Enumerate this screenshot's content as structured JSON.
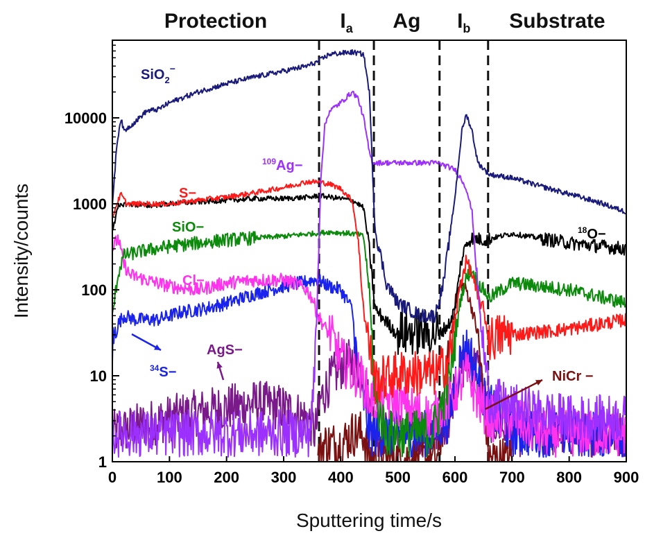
{
  "chart_data": {
    "type": "line",
    "xlabel": "Sputtering time/s",
    "ylabel": "Intensity/counts",
    "y_scale": "log",
    "xlim": [
      0,
      900
    ],
    "ylim": [
      1,
      80000
    ],
    "x_ticks": [
      0,
      100,
      200,
      300,
      400,
      500,
      600,
      700,
      800,
      900
    ],
    "y_ticks": [
      {
        "value": 1,
        "label": "1"
      },
      {
        "value": 10,
        "label": "10"
      },
      {
        "value": 100,
        "label": "100"
      },
      {
        "value": 1000,
        "label": "1000"
      },
      {
        "value": 10000,
        "label": "10000"
      }
    ],
    "boundaries": [
      362,
      458,
      573,
      658
    ],
    "regions": [
      {
        "name": "Protection",
        "x_from": 0,
        "x_to": 362
      },
      {
        "name": "I",
        "sub": "a",
        "x_from": 362,
        "x_to": 458
      },
      {
        "name": "Ag",
        "x_from": 458,
        "x_to": 573
      },
      {
        "name": "I",
        "sub": "b",
        "x_from": 573,
        "x_to": 658
      },
      {
        "name": "Substrate",
        "x_from": 658,
        "x_to": 900
      }
    ],
    "series": [
      {
        "key": "sio2",
        "name": "SiO₂⁻",
        "color": "#1a1a7a",
        "x": [
          0,
          8,
          15,
          20,
          40,
          60,
          80,
          100,
          150,
          200,
          250,
          300,
          340,
          360,
          380,
          420,
          440,
          450,
          460,
          480,
          500,
          540,
          565,
          580,
          600,
          612,
          620,
          630,
          640,
          660,
          700,
          750,
          800,
          850,
          900
        ],
        "y": [
          1000,
          5000,
          10000,
          7000,
          9000,
          12000,
          12500,
          15000,
          20000,
          25000,
          30000,
          35000,
          40000,
          45000,
          55000,
          58000,
          55000,
          20000,
          500,
          120,
          70,
          50,
          50,
          120,
          1200,
          7000,
          11000,
          7000,
          3000,
          2200,
          2000,
          1600,
          1300,
          1050,
          800
        ]
      },
      {
        "key": "ag109",
        "name": "Ag⁻",
        "sup": "109",
        "color": "#9b30ff",
        "x": [
          0,
          100,
          200,
          300,
          345,
          352,
          358,
          365,
          372,
          380,
          400,
          420,
          430,
          440,
          450,
          455,
          460,
          500,
          540,
          570,
          600,
          610,
          620,
          630,
          645,
          660,
          700,
          800,
          900
        ],
        "y": [
          2,
          2,
          2,
          2,
          2,
          5,
          50,
          2000,
          8000,
          12000,
          15000,
          20000,
          17000,
          10000,
          4000,
          3100,
          3000,
          3000,
          3000,
          3000,
          2500,
          2000,
          1500,
          800,
          40,
          5,
          4,
          3,
          3
        ]
      },
      {
        "key": "s",
        "name": "S⁻",
        "color": "#ff1a1a",
        "x": [
          0,
          8,
          15,
          25,
          60,
          100,
          150,
          200,
          250,
          300,
          340,
          360,
          380,
          400,
          420,
          430,
          440,
          450,
          460,
          500,
          540,
          570,
          590,
          610,
          620,
          630,
          640,
          650,
          660,
          700,
          800,
          900
        ],
        "y": [
          700,
          1000,
          1300,
          1000,
          1000,
          1000,
          1100,
          1200,
          1350,
          1550,
          1800,
          1800,
          1700,
          1500,
          1100,
          400,
          60,
          20,
          8,
          10,
          10,
          10,
          15,
          120,
          220,
          150,
          80,
          60,
          25,
          30,
          35,
          45
        ]
      },
      {
        "key": "o18",
        "name": "O⁻",
        "sup": "18",
        "color": "#000000",
        "x": [
          0,
          10,
          20,
          60,
          100,
          150,
          200,
          250,
          300,
          350,
          360,
          380,
          400,
          420,
          430,
          440,
          450,
          460,
          500,
          540,
          570,
          590,
          600,
          610,
          620,
          630,
          650,
          700,
          800,
          900
        ],
        "y": [
          500,
          900,
          1000,
          950,
          1000,
          1050,
          1100,
          1150,
          1150,
          1200,
          1250,
          1200,
          1150,
          1100,
          1000,
          900,
          300,
          60,
          30,
          30,
          30,
          40,
          60,
          200,
          350,
          400,
          380,
          450,
          350,
          300
        ]
      },
      {
        "key": "sio",
        "name": "SiO⁻",
        "color": "#0b8a0b",
        "x": [
          0,
          10,
          20,
          50,
          100,
          150,
          200,
          250,
          300,
          350,
          380,
          400,
          420,
          430,
          440,
          450,
          460,
          480,
          520,
          560,
          590,
          610,
          620,
          630,
          640,
          650,
          660,
          700,
          800,
          900
        ],
        "y": [
          50,
          150,
          250,
          280,
          320,
          350,
          380,
          400,
          420,
          450,
          470,
          460,
          450,
          440,
          420,
          100,
          5,
          2,
          2,
          2,
          8,
          80,
          140,
          170,
          120,
          100,
          80,
          120,
          100,
          70
        ]
      },
      {
        "key": "cl",
        "name": "Cl⁻",
        "color": "#ff33ee",
        "x": [
          0,
          10,
          20,
          30,
          60,
          100,
          150,
          200,
          250,
          300,
          320,
          340,
          350,
          360,
          380,
          400,
          420,
          430,
          440,
          450,
          480,
          520,
          560,
          600,
          620,
          640,
          660,
          700,
          750,
          800,
          850,
          900
        ],
        "y": [
          300,
          400,
          200,
          150,
          130,
          110,
          100,
          120,
          130,
          130,
          120,
          100,
          80,
          50,
          30,
          15,
          10,
          10,
          8,
          5,
          5,
          4,
          3,
          6,
          10,
          5,
          3,
          3,
          2,
          2,
          2,
          2
        ]
      },
      {
        "key": "s34",
        "name": "S⁻",
        "sup": "34",
        "color": "#1a22ee",
        "x": [
          0,
          10,
          20,
          40,
          80,
          120,
          160,
          200,
          250,
          300,
          330,
          350,
          360,
          380,
          400,
          420,
          430,
          440,
          450,
          480,
          520,
          560,
          590,
          600,
          610,
          620,
          630,
          640,
          650,
          700,
          800,
          900
        ],
        "y": [
          20,
          40,
          50,
          45,
          45,
          55,
          60,
          70,
          90,
          110,
          120,
          130,
          130,
          110,
          100,
          60,
          10,
          5,
          2,
          2,
          2,
          2,
          3,
          8,
          15,
          20,
          15,
          8,
          5,
          2,
          2,
          2
        ]
      },
      {
        "key": "ags",
        "name": "AgS⁻",
        "color": "#7a1a8a",
        "x": [
          0,
          50,
          100,
          150,
          200,
          250,
          300,
          340,
          350,
          355,
          365,
          380,
          400,
          420,
          440,
          450,
          460,
          500,
          560,
          590,
          600,
          620,
          640,
          650,
          660,
          700,
          800,
          900
        ],
        "y": [
          2,
          2.5,
          3,
          3.5,
          4,
          4.5,
          4,
          3,
          2.5,
          2,
          5,
          8,
          12,
          14,
          10,
          4,
          2,
          2,
          2,
          3,
          8,
          14,
          12,
          6,
          3,
          2,
          2,
          2
        ]
      },
      {
        "key": "nicr",
        "name": "NiCr⁻",
        "color": "#7a1010",
        "x": [
          360,
          370,
          400,
          420,
          440,
          450,
          460,
          480,
          500,
          540,
          570,
          580,
          590,
          600,
          610,
          620,
          630,
          640,
          650,
          660,
          700
        ],
        "y": [
          1,
          1.5,
          1.5,
          2,
          2,
          1,
          1,
          1,
          1,
          1,
          1,
          3,
          20,
          70,
          120,
          100,
          60,
          30,
          5,
          1,
          1
        ]
      }
    ],
    "labels": [
      {
        "text": "SiO",
        "sub": "2",
        "super": "−",
        "series": "sio2"
      },
      {
        "text": "Ag−",
        "pre": "109",
        "series": "ag109"
      },
      {
        "text": "S−",
        "series": "s"
      },
      {
        "text": "SiO−",
        "series": "sio"
      },
      {
        "text": "Cl−",
        "series": "cl"
      },
      {
        "text": "O−",
        "pre": "18",
        "series": "o18"
      },
      {
        "text": "S−",
        "pre": "34",
        "series": "s34"
      },
      {
        "text": "AgS−",
        "series": "ags"
      },
      {
        "text": "NiCr −",
        "series": "nicr"
      }
    ]
  }
}
